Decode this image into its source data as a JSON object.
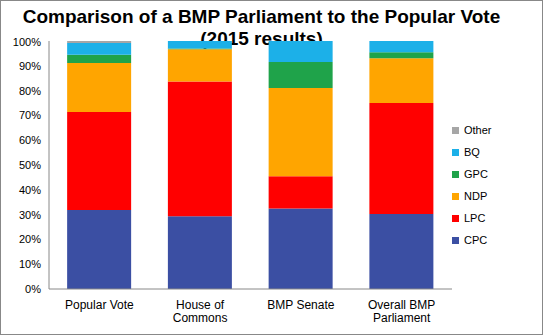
{
  "chart_data": {
    "type": "bar",
    "title": "Comparison of a BMP Parliament to the Popular Vote (2015 results)",
    "categories": [
      "Popular Vote",
      "House of Commons",
      "BMP Senate",
      "Overall BMP Parliament"
    ],
    "series": [
      {
        "name": "CPC",
        "color": "#3b4fa3",
        "values": [
          31.9,
          29.3,
          32.5,
          30.2
        ]
      },
      {
        "name": "LPC",
        "color": "#ff0000",
        "values": [
          39.5,
          54.4,
          13,
          44.8
        ]
      },
      {
        "name": "NDP",
        "color": "#ffa500",
        "values": [
          19.7,
          13,
          35.5,
          18
        ]
      },
      {
        "name": "GPC",
        "color": "#1fa34a",
        "values": [
          3.4,
          0.3,
          10.5,
          2.5
        ]
      },
      {
        "name": "BQ",
        "color": "#1cb0e8",
        "values": [
          4.7,
          3,
          8.5,
          4.5
        ]
      },
      {
        "name": "Other",
        "color": "#a6a6a6",
        "values": [
          0.8,
          0,
          0,
          0
        ]
      }
    ],
    "ylim": [
      0,
      100
    ],
    "yticks": [
      {
        "value": 0,
        "label": "0%"
      },
      {
        "value": 10,
        "label": "10%"
      },
      {
        "value": 20,
        "label": "20%"
      },
      {
        "value": 30,
        "label": "30%"
      },
      {
        "value": 40,
        "label": "40%"
      },
      {
        "value": 50,
        "label": "50%"
      },
      {
        "value": 60,
        "label": "60%"
      },
      {
        "value": 70,
        "label": "70%"
      },
      {
        "value": 80,
        "label": "80%"
      },
      {
        "value": 90,
        "label": "90%"
      },
      {
        "value": 100,
        "label": "100%"
      }
    ],
    "stacked": true,
    "grid": false,
    "legend": "right"
  }
}
